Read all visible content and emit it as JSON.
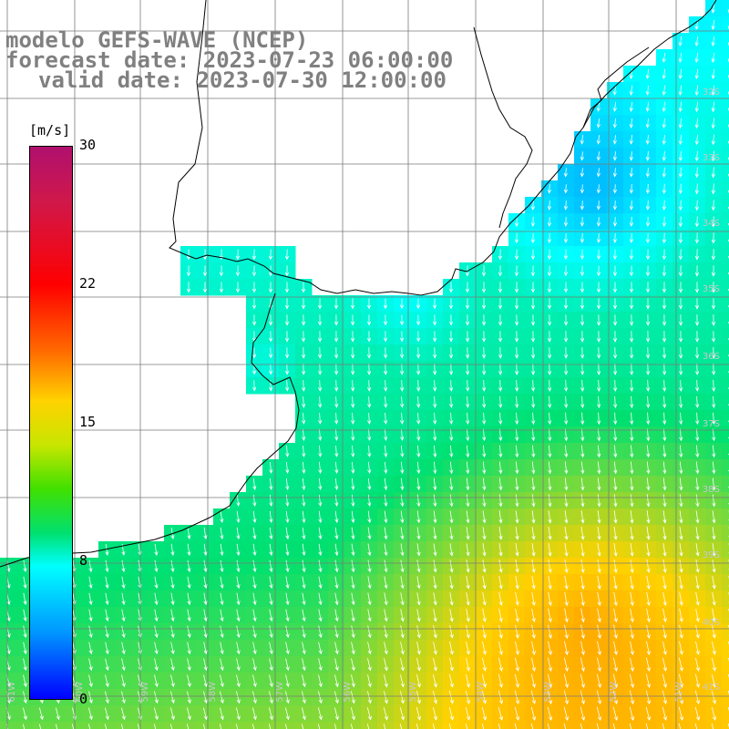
{
  "title": {
    "line1": "modelo GEFS-WAVE (NCEP)",
    "line2": "forecast date: 2023-07-23 06:00:00",
    "line3": "valid date: 2023-07-30 12:00:00"
  },
  "colorbar": {
    "unit": "[m/s]",
    "ticks": [
      "30",
      "22",
      "15",
      "8",
      "0"
    ],
    "colors": [
      "#0000ff",
      "#00ffff",
      "#00e070",
      "#ffd200",
      "#ff0000",
      "#b0106e"
    ]
  },
  "lat_labels": [
    "32S",
    "33S",
    "34S",
    "35S",
    "36S",
    "37S",
    "38S",
    "39S",
    "40S",
    "41S"
  ],
  "lon_labels": [
    "61W",
    "60W",
    "59W",
    "58W",
    "57W",
    "56W",
    "55W",
    "54W",
    "53W",
    "52W",
    "51W"
  ],
  "wind_field": {
    "quantity": "wind speed",
    "unit": "m/s",
    "direction": "from north-northwest",
    "speed_range": [
      8,
      16
    ]
  }
}
